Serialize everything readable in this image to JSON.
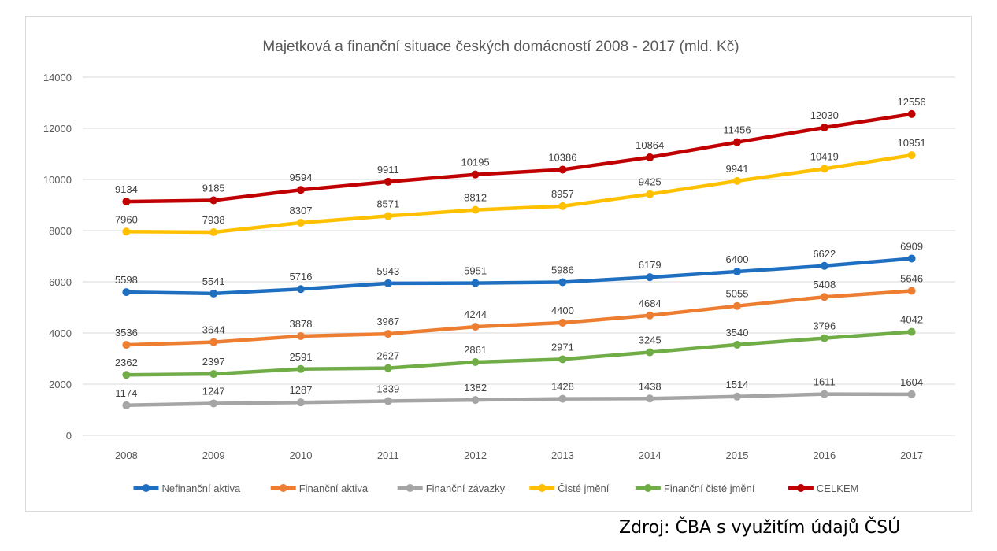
{
  "source_note": "Zdroj: ČBA s využitím údajů ČSÚ",
  "chart_data": {
    "type": "line",
    "title": "Majetková a finanční situace českých domácností 2008 - 2017 (mld. Kč)",
    "xlabel": "",
    "ylabel": "",
    "x": [
      "2008",
      "2009",
      "2010",
      "2011",
      "2012",
      "2013",
      "2014",
      "2015",
      "2016",
      "2017"
    ],
    "ylim": [
      0,
      14000
    ],
    "yticks": [
      "0",
      "2000",
      "4000",
      "6000",
      "8000",
      "10000",
      "12000",
      "14000"
    ],
    "grid": "horizontal",
    "legend_position": "bottom",
    "series": [
      {
        "name": "Nefinanční aktiva",
        "color": "#1f6fc1",
        "values": [
          5598,
          5541,
          5716,
          5943,
          5951,
          5986,
          6179,
          6400,
          6622,
          6909
        ]
      },
      {
        "name": "Finanční aktiva",
        "color": "#ed7d31",
        "values": [
          3536,
          3644,
          3878,
          3967,
          4244,
          4400,
          4684,
          5055,
          5408,
          5646
        ]
      },
      {
        "name": "Finanční závazky",
        "color": "#a5a5a5",
        "values": [
          1174,
          1247,
          1287,
          1339,
          1382,
          1428,
          1438,
          1514,
          1611,
          1604
        ]
      },
      {
        "name": "Čisté jmění",
        "color": "#ffc000",
        "values": [
          7960,
          7938,
          8307,
          8571,
          8812,
          8957,
          9425,
          9941,
          10419,
          10951
        ]
      },
      {
        "name": "Finanční čisté jmění",
        "color": "#70ad47",
        "values": [
          2362,
          2397,
          2591,
          2627,
          2861,
          2971,
          3245,
          3540,
          3796,
          4042
        ]
      },
      {
        "name": "CELKEM",
        "color": "#c00000",
        "values": [
          9134,
          9185,
          9594,
          9911,
          10195,
          10386,
          10864,
          11456,
          12030,
          12556
        ]
      }
    ]
  }
}
